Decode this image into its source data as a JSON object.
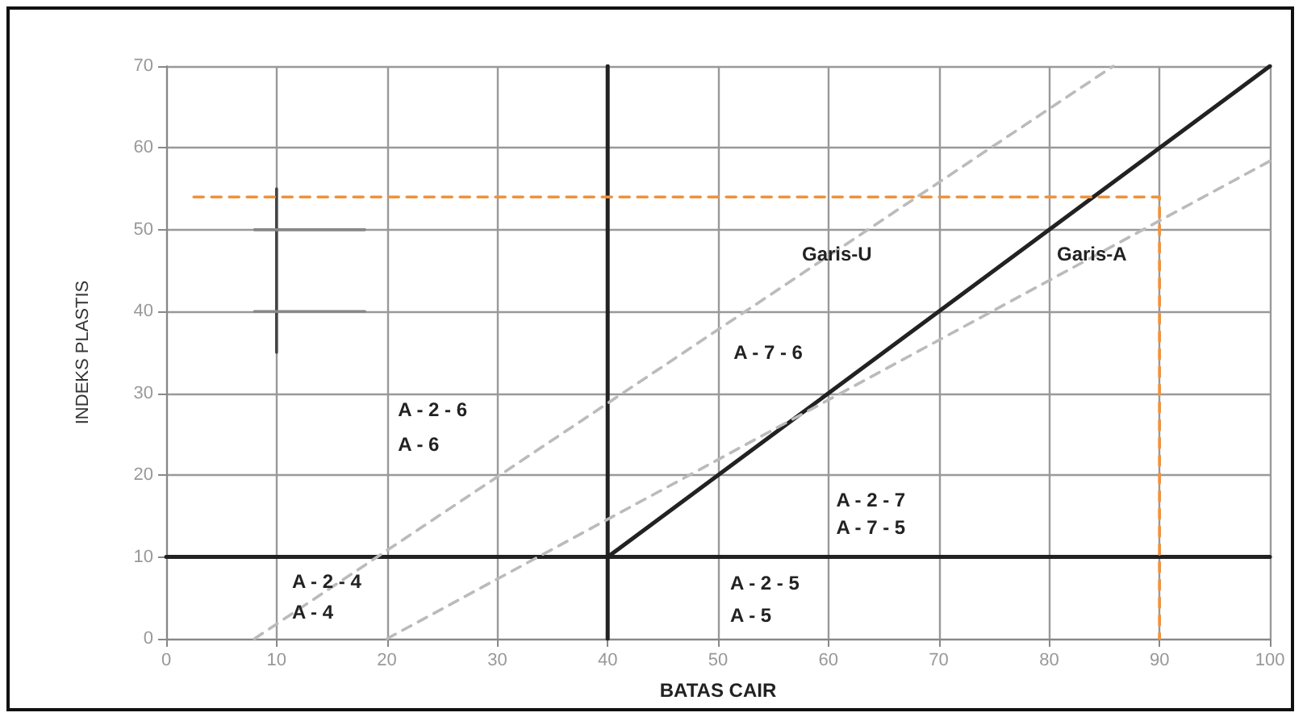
{
  "chart_data": {
    "type": "line",
    "xlabel": "BATAS CAIR",
    "ylabel": "INDEKS PLASTIS",
    "xlim": [
      0,
      100
    ],
    "xticks": [
      0,
      10,
      20,
      30,
      40,
      50,
      60,
      70,
      80,
      90,
      100
    ],
    "ylim": [
      0,
      70
    ],
    "yticks": [
      0,
      10,
      20,
      30,
      40,
      50,
      60,
      70
    ],
    "grid": true,
    "marker": "none",
    "series": [
      {
        "color": "#222222",
        "x": [
          0,
          100
        ],
        "values": [
          10,
          10
        ],
        "line_style": "solid"
      },
      {
        "color": "#222222",
        "x": [
          40,
          40
        ],
        "values": [
          0,
          70
        ],
        "line_style": "solid"
      },
      {
        "color": "#222222",
        "x": [
          40,
          100
        ],
        "values": [
          10,
          70
        ],
        "line_style": "solid"
      },
      {
        "color": "#bbbbbb",
        "x": [
          8,
          85.8
        ],
        "values": [
          0,
          70
        ],
        "line_style": "dashed"
      },
      {
        "color": "#bbbbbb",
        "x": [
          20,
          100
        ],
        "values": [
          0,
          58.4
        ],
        "line_style": "dashed"
      },
      {
        "color": "#444444",
        "x": [
          10,
          10
        ],
        "values": [
          35,
          55
        ],
        "line_style": "solid"
      },
      {
        "color": "#888888",
        "x": [
          8,
          18
        ],
        "values": [
          50,
          50
        ],
        "line_style": "solid"
      },
      {
        "color": "#888888",
        "x": [
          8,
          18
        ],
        "values": [
          40,
          40
        ],
        "line_style": "solid"
      },
      {
        "color": "#f0923a",
        "x": [
          2.5,
          90,
          90
        ],
        "values": [
          54,
          54,
          0
        ],
        "line_style": "dashed"
      }
    ],
    "annotations": [
      "A - 2 - 6",
      "A - 6",
      "A - 2 - 4",
      "A - 4",
      "A - 7 - 6",
      "Garis-U",
      "Garis-A",
      "A - 2 - 7",
      "A - 7 - 5",
      "A - 2 - 5",
      "A - 5"
    ]
  }
}
